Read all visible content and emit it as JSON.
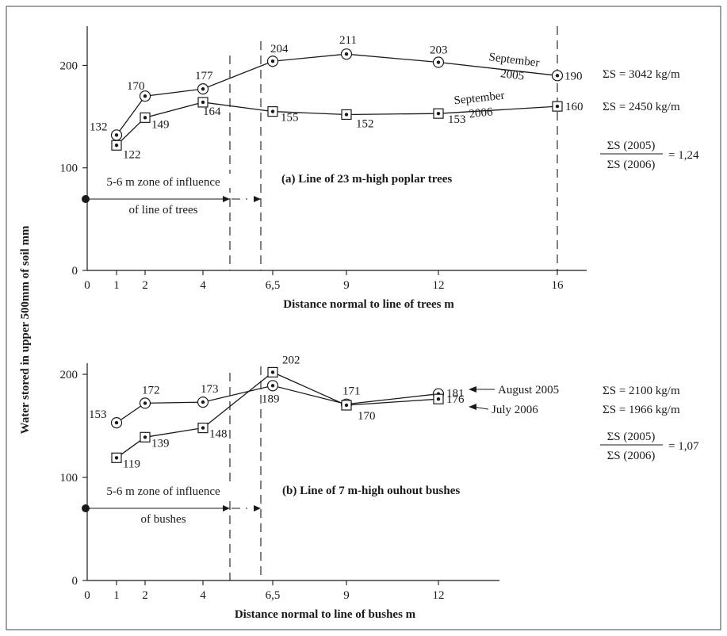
{
  "y_axis_title": "Water stored in upper 500mm of soil mm",
  "chart_data": [
    {
      "type": "line",
      "panel_title": "(a) Line of 23 m-high poplar trees",
      "xlabel": "Distance normal to line of trees m",
      "x_tick_labels": [
        "0",
        "1",
        "2",
        "4",
        "6,5",
        "9",
        "12",
        "16"
      ],
      "y_tick_labels": [
        "0",
        "100",
        "200"
      ],
      "ylim": [
        0,
        250
      ],
      "series": [
        {
          "marker": "circle",
          "name_line1": "September",
          "name_line2": "2005",
          "x": [
            1,
            2,
            4,
            6.5,
            9,
            12,
            16
          ],
          "values": [
            132,
            170,
            177,
            204,
            211,
            203,
            190
          ],
          "labels": [
            "132",
            "170",
            "177",
            "204",
            "211",
            "203",
            "190"
          ],
          "total": "ΣS = 3042 kg/m"
        },
        {
          "marker": "square",
          "name_line1": "September",
          "name_line2": "2006",
          "x": [
            1,
            2,
            4,
            6.5,
            9,
            12,
            16
          ],
          "values": [
            122,
            149,
            164,
            155,
            152,
            153,
            160
          ],
          "labels": [
            "122",
            "149",
            "164",
            "155",
            "152",
            "153",
            "160"
          ],
          "total": "ΣS = 2450 kg/m"
        }
      ],
      "annotation": [
        "5-6 m zone of influence",
        "of line of trees"
      ],
      "ratio": {
        "numerator": "ΣS (2005)",
        "denominator": "ΣS (2006)",
        "value": "= 1,24"
      }
    },
    {
      "type": "line",
      "panel_title": "(b) Line of 7 m-high ouhout bushes",
      "xlabel": "Distance normal to line of bushes m",
      "x_tick_labels": [
        "0",
        "1",
        "2",
        "4",
        "6,5",
        "9",
        "12"
      ],
      "y_tick_labels": [
        "0",
        "100",
        "200"
      ],
      "ylim": [
        0,
        230
      ],
      "series": [
        {
          "marker": "circle",
          "name": "August 2005",
          "x": [
            1,
            2,
            4,
            6.5,
            9,
            12
          ],
          "values": [
            153,
            172,
            173,
            189,
            171,
            181
          ],
          "labels": [
            "153",
            "172",
            "173",
            "189",
            "171",
            "181"
          ],
          "total": "ΣS = 2100 kg/m"
        },
        {
          "marker": "square",
          "name": "July 2006",
          "x": [
            1,
            2,
            4,
            6.5,
            9,
            12
          ],
          "values": [
            119,
            139,
            148,
            202,
            170,
            176
          ],
          "labels": [
            "119",
            "139",
            "148",
            "202",
            "170",
            "176"
          ],
          "total": "ΣS = 1966 kg/m"
        }
      ],
      "annotation": [
        "5-6 m zone of influence",
        "of bushes"
      ],
      "ratio": {
        "numerator": "ΣS (2005)",
        "denominator": "ΣS (2006)",
        "value": "= 1,07"
      }
    }
  ]
}
